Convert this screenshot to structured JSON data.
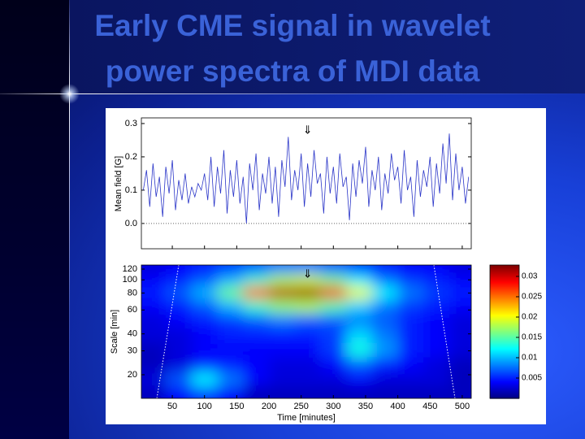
{
  "title": [
    "Early CME signal in wavelet",
    "power spectra of MDI data"
  ],
  "chart_data": [
    {
      "type": "line",
      "ylabel": "Mean field [G]",
      "color": "#2a35c8",
      "xlim": [
        2,
        514
      ],
      "ylim": [
        -0.076,
        0.317
      ],
      "yticks": [
        {
          "value": 0,
          "label": "0.0"
        },
        0.1,
        0.2,
        0.3
      ],
      "reference_line": 0,
      "annotations": [
        {
          "text": "⇓",
          "x": 260
        }
      ],
      "x": [
        5,
        10,
        15,
        20,
        25,
        30,
        35,
        40,
        45,
        50,
        55,
        60,
        65,
        70,
        75,
        80,
        85,
        90,
        95,
        100,
        105,
        110,
        115,
        120,
        125,
        130,
        135,
        140,
        145,
        150,
        155,
        160,
        165,
        170,
        175,
        180,
        185,
        190,
        195,
        200,
        205,
        210,
        215,
        220,
        225,
        230,
        235,
        240,
        245,
        250,
        255,
        260,
        265,
        270,
        275,
        280,
        285,
        290,
        295,
        300,
        305,
        310,
        315,
        320,
        325,
        330,
        335,
        340,
        345,
        350,
        355,
        360,
        365,
        370,
        375,
        380,
        385,
        390,
        395,
        400,
        405,
        410,
        415,
        420,
        425,
        430,
        435,
        440,
        445,
        450,
        455,
        460,
        465,
        470,
        475,
        480,
        485,
        490,
        495,
        500,
        505,
        510
      ],
      "values": [
        0.1,
        0.16,
        0.05,
        0.18,
        0.08,
        0.14,
        0.02,
        0.17,
        0.09,
        0.19,
        0.04,
        0.13,
        0.07,
        0.15,
        0.06,
        0.11,
        0.08,
        0.12,
        0.1,
        0.15,
        0.07,
        0.2,
        0.05,
        0.17,
        0.09,
        0.22,
        0.03,
        0.16,
        0.08,
        0.19,
        0.06,
        0.14,
        0.0,
        0.18,
        0.1,
        0.21,
        0.04,
        0.15,
        0.09,
        0.2,
        0.06,
        0.17,
        0.02,
        0.19,
        0.11,
        0.26,
        0.07,
        0.16,
        0.1,
        0.21,
        0.05,
        0.18,
        0.08,
        0.22,
        0.12,
        0.15,
        0.03,
        0.2,
        0.09,
        0.17,
        0.06,
        0.21,
        0.11,
        0.14,
        0.01,
        0.18,
        0.08,
        0.19,
        0.12,
        0.23,
        0.05,
        0.16,
        0.1,
        0.2,
        0.04,
        0.15,
        0.09,
        0.21,
        0.13,
        0.17,
        0.06,
        0.22,
        0.1,
        0.14,
        0.02,
        0.19,
        0.08,
        0.16,
        0.11,
        0.2,
        0.05,
        0.18,
        0.09,
        0.24,
        0.12,
        0.27,
        0.07,
        0.21,
        0.1,
        0.17,
        0.06,
        0.14
      ]
    },
    {
      "type": "heatmap",
      "xlabel": "Time [minutes]",
      "ylabel": "Scale [min]",
      "xlim": [
        2,
        514
      ],
      "ylim": [
        13.4,
        128.6
      ],
      "ylog": true,
      "xticks": [
        50,
        100,
        150,
        200,
        250,
        300,
        350,
        400,
        450,
        500
      ],
      "yticks": [
        20,
        30,
        40,
        60,
        80,
        100,
        120
      ],
      "clim": [
        0,
        0.0328
      ],
      "colorbar_ticks": [
        0.005,
        0.01,
        0.015,
        0.02,
        0.025,
        0.03
      ],
      "colormap": "jet",
      "annotations": [
        {
          "text": "⇓",
          "x": 260
        }
      ],
      "x": [
        20,
        60,
        100,
        140,
        180,
        220,
        260,
        300,
        340,
        380,
        420,
        460,
        500
      ],
      "y": [
        120,
        100,
        80,
        65,
        50,
        40,
        30,
        24,
        18,
        15
      ],
      "values": [
        [
          0.003,
          0.004,
          0.005,
          0.006,
          0.007,
          0.008,
          0.008,
          0.007,
          0.006,
          0.005,
          0.004,
          0.004,
          0.003
        ],
        [
          0.004,
          0.005,
          0.007,
          0.01,
          0.014,
          0.018,
          0.019,
          0.016,
          0.012,
          0.008,
          0.006,
          0.005,
          0.004
        ],
        [
          0.005,
          0.007,
          0.01,
          0.016,
          0.026,
          0.031,
          0.032,
          0.029,
          0.02,
          0.012,
          0.008,
          0.006,
          0.005
        ],
        [
          0.004,
          0.005,
          0.007,
          0.01,
          0.014,
          0.017,
          0.018,
          0.015,
          0.011,
          0.008,
          0.006,
          0.005,
          0.004
        ],
        [
          0.003,
          0.004,
          0.005,
          0.006,
          0.007,
          0.008,
          0.007,
          0.007,
          0.008,
          0.007,
          0.005,
          0.004,
          0.003
        ],
        [
          0.003,
          0.003,
          0.004,
          0.005,
          0.005,
          0.005,
          0.005,
          0.006,
          0.011,
          0.008,
          0.005,
          0.004,
          0.003
        ],
        [
          0.002,
          0.003,
          0.004,
          0.004,
          0.004,
          0.004,
          0.004,
          0.006,
          0.013,
          0.009,
          0.005,
          0.004,
          0.003
        ],
        [
          0.002,
          0.003,
          0.005,
          0.005,
          0.004,
          0.003,
          0.003,
          0.004,
          0.007,
          0.005,
          0.004,
          0.003,
          0.002
        ],
        [
          0.003,
          0.007,
          0.012,
          0.008,
          0.004,
          0.003,
          0.003,
          0.003,
          0.004,
          0.003,
          0.003,
          0.003,
          0.002
        ],
        [
          0.002,
          0.004,
          0.006,
          0.004,
          0.002,
          0.002,
          0.002,
          0.002,
          0.002,
          0.002,
          0.002,
          0.002,
          0.002
        ]
      ]
    }
  ]
}
